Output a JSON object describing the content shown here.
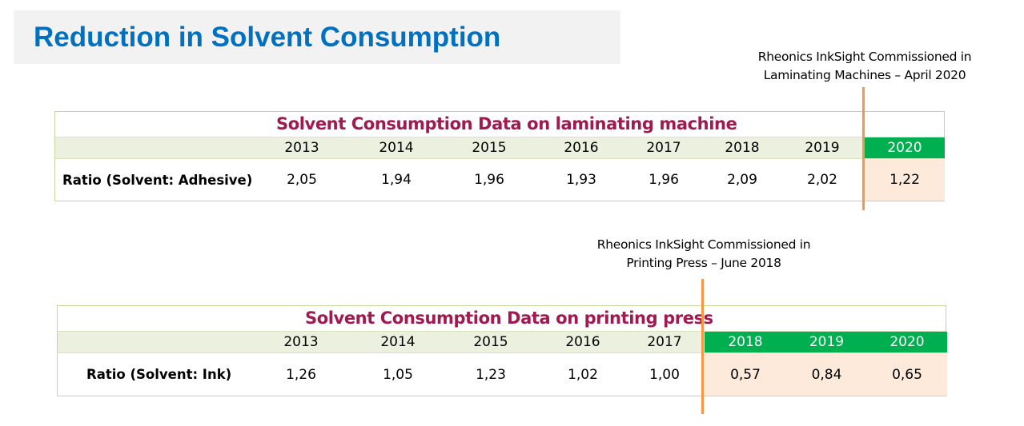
{
  "title": "Reduction in Solvent Consumption",
  "laminating": {
    "note_line1": "Rheonics InkSight Commissioned in",
    "note_line2": "Laminating Machines – April 2020",
    "table_title": "Solvent Consumption Data on laminating machine",
    "row_label": "Ratio (Solvent: Adhesive)",
    "years": [
      "2013",
      "2014",
      "2015",
      "2016",
      "2017",
      "2018",
      "2019",
      "2020"
    ],
    "values": [
      "2,05",
      "1,94",
      "1,96",
      "1,93",
      "1,96",
      "2,09",
      "2,02",
      "1,22"
    ],
    "highlight_from_year": "2020"
  },
  "printing": {
    "note_line1": "Rheonics InkSight Commissioned in",
    "note_line2": "Printing Press – June 2018",
    "table_title": "Solvent Consumption Data on printing press",
    "row_label": "Ratio (Solvent: Ink)",
    "years": [
      "2013",
      "2014",
      "2015",
      "2016",
      "2017",
      "2018",
      "2019",
      "2020"
    ],
    "values": [
      "1,26",
      "1,05",
      "1,23",
      "1,02",
      "1,00",
      "0,57",
      "0,84",
      "0,65"
    ],
    "highlight_from_year": "2018"
  },
  "colors": {
    "title": "#0070c0",
    "table_title": "#a0194f",
    "highlight_header": "#00b050",
    "highlight_cell": "#fdeada",
    "marker": "#f79646",
    "header_band": "#ebf1de"
  }
}
